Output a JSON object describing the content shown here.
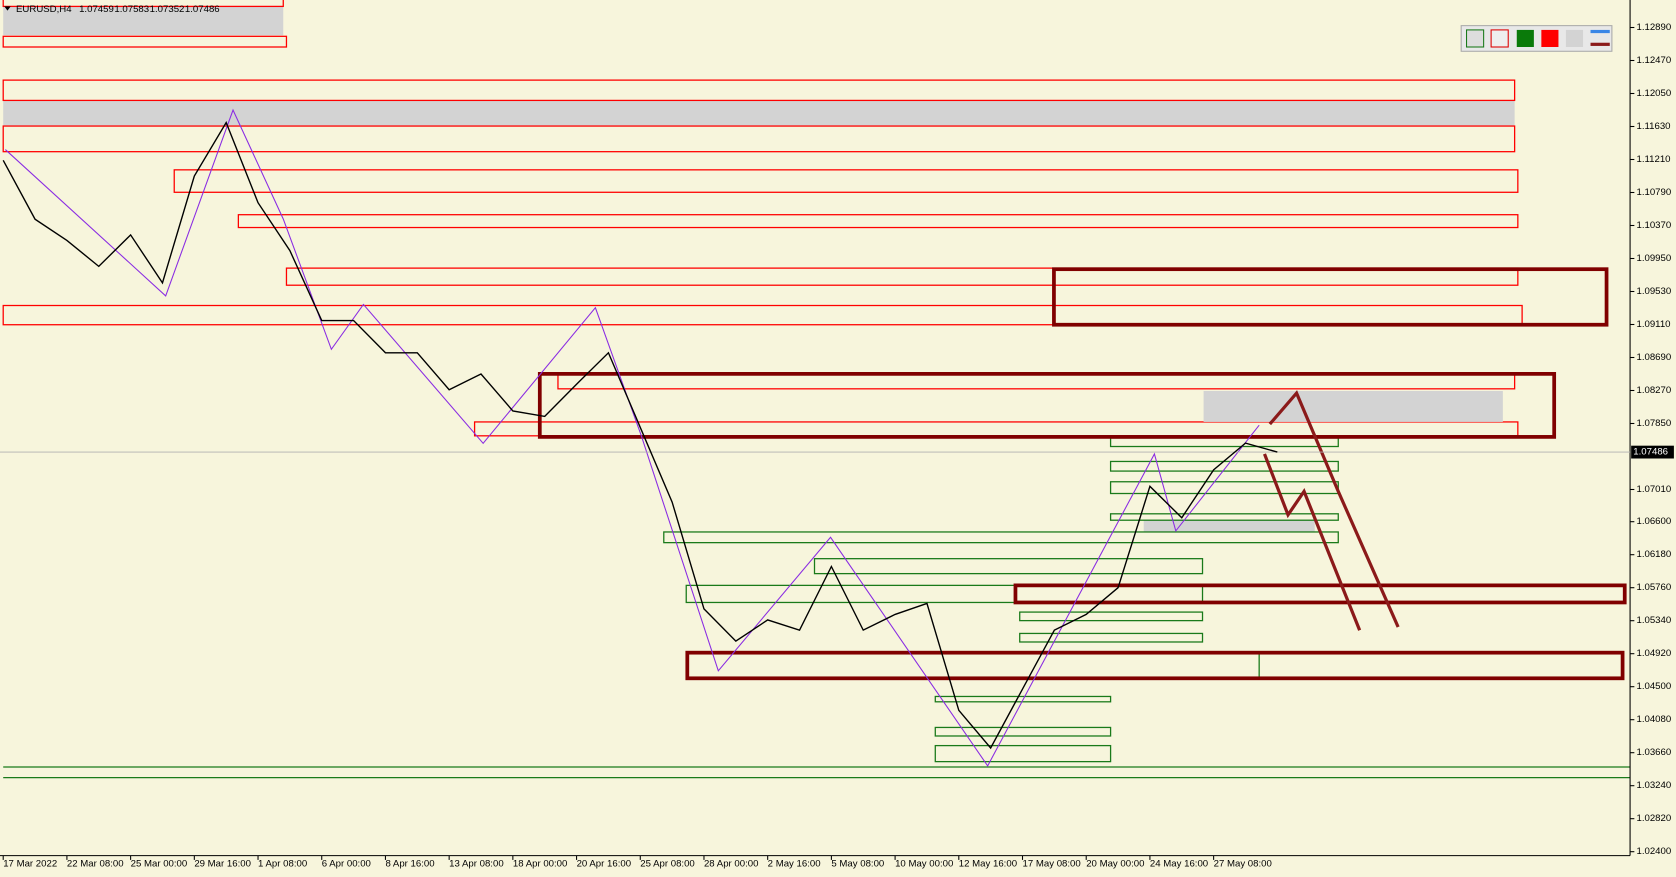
{
  "chart_data": {
    "type": "line",
    "title": "EURUSD,H4",
    "ohlc": [
      1.07459,
      1.07583,
      1.07352,
      1.07486
    ],
    "last_price": 1.07486,
    "categories": [
      "17 Mar 2022",
      null,
      "22 Mar 08:00",
      null,
      "25 Mar 00:00",
      null,
      "29 Mar 16:00",
      null,
      "1 Apr 08:00",
      null,
      "6 Apr 00:00",
      null,
      "8 Apr 16:00",
      null,
      "13 Apr 08:00",
      null,
      "18 Apr 00:00",
      null,
      "20 Apr 16:00",
      null,
      "25 Apr 08:00",
      null,
      "28 Apr 00:00",
      null,
      "2 May 16:00",
      null,
      "5 May 08:00",
      null,
      "10 May 00:00",
      null,
      "12 May 16:00",
      null,
      "17 May 08:00",
      null,
      "20 May 00:00",
      null,
      "24 May 16:00",
      null,
      "27 May 08:00",
      null,
      null
    ],
    "series": [
      {
        "color": "#000000",
        "values": [
          1.112,
          1.1045,
          1.1018,
          1.0985,
          1.1025,
          1.0964,
          1.11,
          1.1168,
          1.1066,
          1.1005,
          1.0916,
          1.0916,
          1.0875,
          1.0875,
          1.0828,
          1.0848,
          1.0801,
          1.0794,
          1.0835,
          1.0875,
          1.078,
          1.0685,
          1.0549,
          1.0508,
          1.0535,
          1.0522,
          1.0603,
          1.0522,
          1.0542,
          1.0556,
          1.042,
          1.0372,
          1.0447,
          1.0522,
          1.0542,
          1.0576,
          1.0705,
          1.0665,
          1.0726,
          1.076,
          1.07486
        ]
      }
    ],
    "ylim": [
      1.0235,
      1.1324
    ],
    "yticks": [
      {
        "value": 1.1289,
        "label": "1.12890"
      },
      {
        "value": 1.1247,
        "label": "1.12470"
      },
      {
        "value": 1.1205,
        "label": "1.12050"
      },
      {
        "value": 1.1163,
        "label": "1.11630"
      },
      {
        "value": 1.1121,
        "label": "1.11210"
      },
      {
        "value": 1.1079,
        "label": "1.10790"
      },
      {
        "value": 1.1037,
        "label": "1.10370"
      },
      {
        "value": 1.0995,
        "label": "1.09950"
      },
      {
        "value": 1.0953,
        "label": "1.09530"
      },
      {
        "value": 1.0911,
        "label": "1.09110"
      },
      {
        "value": 1.0869,
        "label": "1.08690"
      },
      {
        "value": 1.0827,
        "label": "1.08270"
      },
      {
        "value": 1.0785,
        "label": "1.07850"
      },
      {
        "value": 1.0701,
        "label": "1.07010"
      },
      {
        "value": 1.066,
        "label": "1.06600"
      },
      {
        "value": 1.0618,
        "label": "1.06180"
      },
      {
        "value": 1.0576,
        "label": "1.05760"
      },
      {
        "value": 1.0534,
        "label": "1.05340"
      },
      {
        "value": 1.0492,
        "label": "1.04920"
      },
      {
        "value": 1.045,
        "label": "1.04500"
      },
      {
        "value": 1.0408,
        "label": "1.04080"
      },
      {
        "value": 1.0366,
        "label": "1.03660"
      },
      {
        "value": 1.0324,
        "label": "1.03240"
      },
      {
        "value": 1.0282,
        "label": "1.02820"
      },
      {
        "value": 1.024,
        "label": "1.02400"
      }
    ],
    "grid": false
  }
}
